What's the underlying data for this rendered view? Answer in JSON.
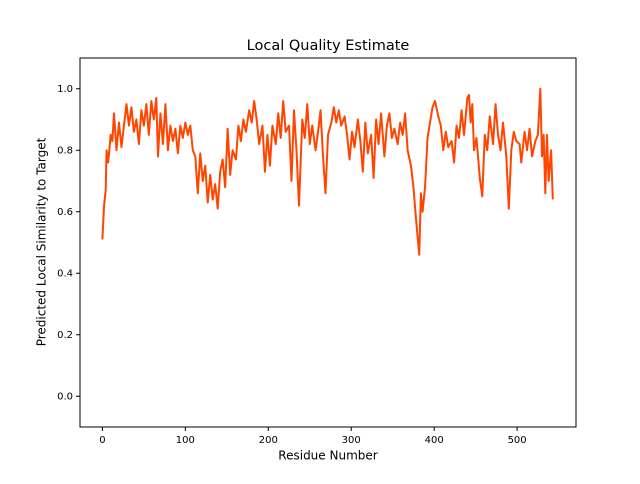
{
  "chart_data": {
    "type": "line",
    "title": "Local Quality Estimate",
    "xlabel": "Residue Number",
    "ylabel": "Predicted Local Similarity to Target",
    "xlim": [
      -27,
      571
    ],
    "ylim": [
      -0.1,
      1.1
    ],
    "xticks": [
      0,
      100,
      200,
      300,
      400,
      500
    ],
    "yticks": [
      {
        "value": 0,
        "label": "0.0"
      },
      0.2,
      0.4,
      0.6,
      0.8,
      {
        "value": 1,
        "label": "1.0"
      }
    ],
    "series": [
      {
        "color": "#ff4500",
        "x": [
          0,
          2,
          4,
          5,
          7,
          10,
          12,
          14,
          17,
          20,
          23,
          26,
          29,
          32,
          35,
          38,
          41,
          44,
          47,
          50,
          53,
          56,
          59,
          62,
          65,
          67,
          70,
          73,
          76,
          79,
          82,
          85,
          88,
          91,
          94,
          97,
          100,
          103,
          106,
          109,
          112,
          115,
          118,
          121,
          124,
          127,
          130,
          133,
          136,
          139,
          142,
          145,
          148,
          151,
          154,
          157,
          161,
          164,
          167,
          170,
          173,
          177,
          180,
          183,
          186,
          189,
          193,
          196,
          199,
          202,
          205,
          209,
          212,
          215,
          218,
          221,
          225,
          228,
          231,
          234,
          237,
          241,
          244,
          247,
          250,
          253,
          257,
          260,
          263,
          266,
          269,
          272,
          276,
          279,
          282,
          285,
          288,
          292,
          295,
          298,
          301,
          304,
          308,
          311,
          314,
          317,
          320,
          324,
          327,
          330,
          333,
          336,
          340,
          343,
          346,
          349,
          352,
          356,
          359,
          362,
          365,
          368,
          372,
          375,
          378,
          380,
          382,
          384,
          386,
          389,
          392,
          395,
          398,
          401,
          405,
          408,
          411,
          414,
          417,
          421,
          424,
          427,
          430,
          433,
          436,
          440,
          442,
          444,
          446,
          448,
          451,
          455,
          458,
          461,
          464,
          467,
          471,
          474,
          477,
          480,
          483,
          487,
          490,
          493,
          496,
          499,
          503,
          505,
          509,
          512,
          515,
          518,
          522,
          525,
          528,
          530,
          532,
          534,
          536,
          538,
          541,
          543
        ],
        "values": [
          0.51,
          0.62,
          0.67,
          0.8,
          0.76,
          0.85,
          0.83,
          0.92,
          0.8,
          0.89,
          0.81,
          0.88,
          0.95,
          0.88,
          0.94,
          0.86,
          0.9,
          0.82,
          0.93,
          0.88,
          0.95,
          0.85,
          0.96,
          0.9,
          0.97,
          0.78,
          0.92,
          0.82,
          0.95,
          0.8,
          0.88,
          0.83,
          0.87,
          0.79,
          0.88,
          0.84,
          0.89,
          0.85,
          0.88,
          0.8,
          0.78,
          0.66,
          0.79,
          0.7,
          0.75,
          0.63,
          0.72,
          0.64,
          0.69,
          0.61,
          0.73,
          0.77,
          0.68,
          0.87,
          0.72,
          0.8,
          0.77,
          0.88,
          0.83,
          0.9,
          0.86,
          0.93,
          0.89,
          0.96,
          0.9,
          0.82,
          0.88,
          0.73,
          0.85,
          0.75,
          0.88,
          0.82,
          0.92,
          0.84,
          0.96,
          0.86,
          0.88,
          0.7,
          0.93,
          0.8,
          0.62,
          0.9,
          0.84,
          0.95,
          0.82,
          0.88,
          0.8,
          0.86,
          0.93,
          0.78,
          0.66,
          0.85,
          0.89,
          0.94,
          0.89,
          0.93,
          0.88,
          0.91,
          0.85,
          0.77,
          0.86,
          0.81,
          0.9,
          0.83,
          0.73,
          0.89,
          0.79,
          0.85,
          0.71,
          0.9,
          0.82,
          0.92,
          0.78,
          0.88,
          0.92,
          0.84,
          0.87,
          0.82,
          0.89,
          0.85,
          0.92,
          0.8,
          0.75,
          0.68,
          0.58,
          0.52,
          0.46,
          0.66,
          0.6,
          0.68,
          0.84,
          0.89,
          0.94,
          0.96,
          0.91,
          0.88,
          0.8,
          0.86,
          0.81,
          0.83,
          0.76,
          0.88,
          0.84,
          0.93,
          0.85,
          0.97,
          0.98,
          0.89,
          0.95,
          0.8,
          0.84,
          0.71,
          0.65,
          0.85,
          0.8,
          0.91,
          0.82,
          0.95,
          0.85,
          0.8,
          0.89,
          0.78,
          0.61,
          0.8,
          0.86,
          0.83,
          0.82,
          0.76,
          0.86,
          0.8,
          0.87,
          0.78,
          0.83,
          0.85,
          1.0,
          0.78,
          0.85,
          0.66,
          0.85,
          0.7,
          0.8,
          0.64
        ]
      }
    ]
  }
}
